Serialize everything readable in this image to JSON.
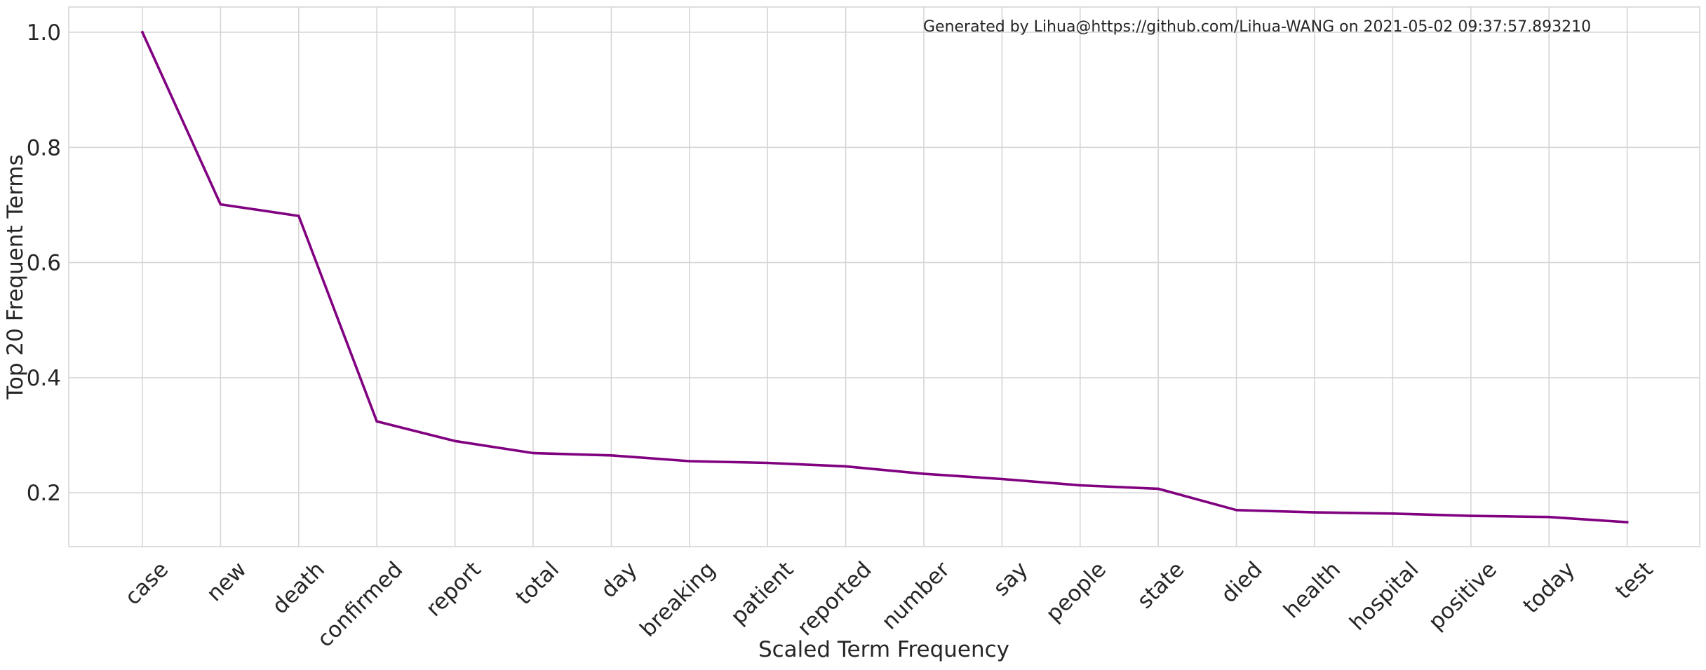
{
  "chart_data": {
    "type": "line",
    "annotation": "Generated by Lihua@https://github.com/Lihua-WANG on 2021-05-02 09:37:57.893210",
    "xlabel": "Scaled Term Frequency",
    "ylabel": "Top 20 Frequent Terms",
    "categories": [
      "case",
      "new",
      "death",
      "confirmed",
      "report",
      "total",
      "day",
      "breaking",
      "patient",
      "reported",
      "number",
      "say",
      "people",
      "state",
      "died",
      "health",
      "hospital",
      "positive",
      "today",
      "test"
    ],
    "series": [
      {
        "color": "#800080",
        "values": [
          1.0,
          0.701,
          0.681,
          0.324,
          0.29,
          0.269,
          0.265,
          0.255,
          0.252,
          0.246,
          0.233,
          0.224,
          0.213,
          0.207,
          0.17,
          0.166,
          0.164,
          0.16,
          0.158,
          0.149
        ]
      }
    ],
    "yticks": [
      "0.2",
      "0.4",
      "0.6",
      "0.8",
      "1.0"
    ],
    "ylim": [
      0.106,
      1.041
    ],
    "grid": true,
    "style": "whitegrid",
    "colors": {
      "line": "#800080",
      "grid": "#d6d6d6",
      "text": "#262626",
      "background": "#ffffff"
    }
  }
}
